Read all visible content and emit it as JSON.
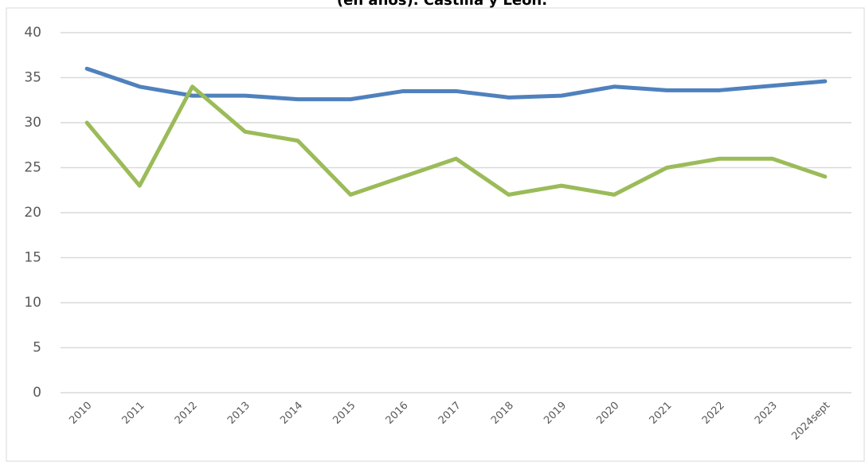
{
  "chart_data": {
    "type": "line",
    "title": "(en años). Castilla y León.",
    "categories": [
      "2010",
      "2011",
      "2012",
      "2013",
      "2014",
      "2015",
      "2016",
      "2017",
      "2018",
      "2019",
      "2020",
      "2021",
      "2022",
      "2023",
      "2024sept"
    ],
    "series": [
      {
        "color": "#4f81bd",
        "values": [
          36,
          34,
          33,
          33,
          32.6,
          32.6,
          33.5,
          33.5,
          32.8,
          33,
          34,
          33.6,
          33.6,
          34.1,
          34.6
        ]
      },
      {
        "color": "#9bbb59",
        "values": [
          30,
          23,
          34,
          29,
          28,
          22,
          24,
          26,
          22,
          23,
          22,
          25,
          26,
          26,
          24
        ]
      }
    ],
    "ylim": [
      0,
      40
    ],
    "yticks": [
      0,
      5,
      10,
      15,
      20,
      25,
      30,
      35,
      40
    ],
    "grid": true
  }
}
